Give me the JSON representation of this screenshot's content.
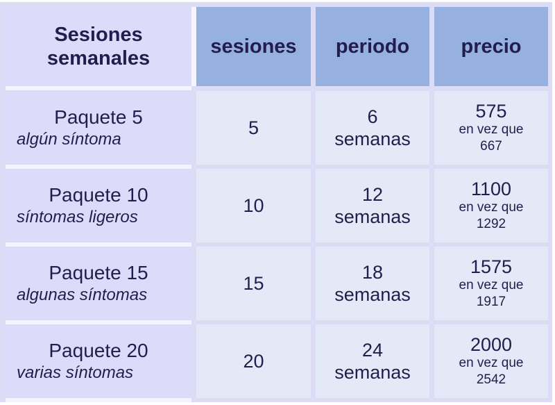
{
  "table": {
    "corner_title": [
      "Sesiones",
      "semanales"
    ],
    "headers": [
      "sesiones",
      "periodo",
      "precio"
    ],
    "rows": [
      {
        "package": "Paquete 5",
        "description": "algún síntoma",
        "sessions": "5",
        "period_number": "6",
        "period_unit": "semanas",
        "price": "575",
        "instead_label": "en vez que",
        "original_price": "667"
      },
      {
        "package": "Paquete 10",
        "description": "síntomas ligeros",
        "sessions": "10",
        "period_number": "12",
        "period_unit": "semanas",
        "price": "1100",
        "instead_label": "en vez que",
        "original_price": "1292"
      },
      {
        "package": "Paquete 15",
        "description": "algunas síntomas",
        "sessions": "15",
        "period_number": "18",
        "period_unit": "semanas",
        "price": "1575",
        "instead_label": "en vez que",
        "original_price": "1917"
      },
      {
        "package": "Paquete 20",
        "description": "varias síntomas",
        "sessions": "20",
        "period_number": "24",
        "period_unit": "semanas",
        "price": "2000",
        "instead_label": "en vez que",
        "original_price": "2542"
      }
    ]
  },
  "colors": {
    "header_blue": "#96b0e0",
    "lavender": "#dcdcfa",
    "cell": "#e3e9f6",
    "text": "#221d4d"
  }
}
